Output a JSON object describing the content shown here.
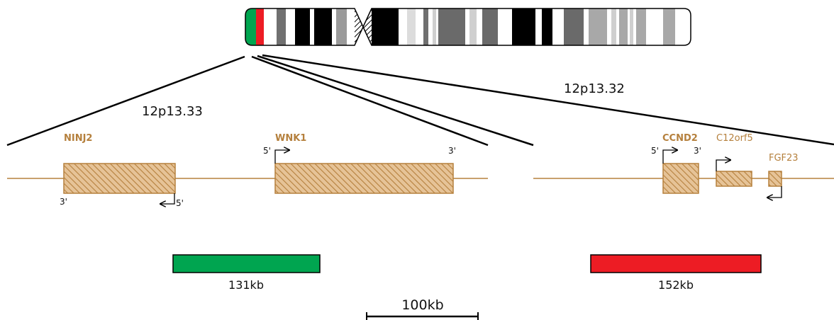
{
  "colors": {
    "gene": "#b5803d",
    "gene_fill": "#d9a86b",
    "segment_green": "#00a550",
    "segment_red": "#ed1c24",
    "outline": "#000000"
  },
  "regions": [
    {
      "band": "12p13.33"
    },
    {
      "band": "12p13.32"
    }
  ],
  "genes": {
    "ninj2": {
      "name": "NINJ2",
      "left_end": "3'",
      "right_end": "5'"
    },
    "wnk1": {
      "name": "WNK1",
      "left_end": "5'",
      "right_end": "3'"
    },
    "ccnd2": {
      "name": "CCND2",
      "left_end": "5'",
      "right_end": "3'"
    },
    "c12orf5": {
      "name": "C12orf5"
    },
    "fgf23": {
      "name": "FGF23"
    }
  },
  "segments": [
    {
      "label": "131kb",
      "color": "#00a550"
    },
    {
      "label": "152kb",
      "color": "#ed1c24"
    }
  ],
  "scale_bar": {
    "label": "100kb"
  }
}
